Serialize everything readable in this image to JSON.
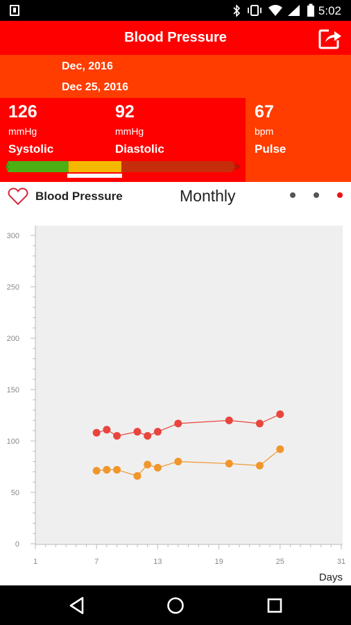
{
  "status_bar": {
    "time": "5:02",
    "icons": [
      "sim-icon",
      "bluetooth-icon",
      "vibrate-icon",
      "wifi-icon",
      "signal-icon",
      "battery-icon"
    ]
  },
  "app_bar": {
    "title": "Blood Pressure",
    "share_icon": "share-icon"
  },
  "dates": {
    "month": "Dec, 2016",
    "day": "Dec 25, 2016"
  },
  "readings": {
    "systolic": {
      "value": "126",
      "unit": "mmHg",
      "label": "Systolic"
    },
    "diastolic": {
      "value": "92",
      "unit": "mmHg",
      "label": "Diastolic"
    },
    "pulse": {
      "value": "67",
      "unit": "bpm",
      "label": "Pulse"
    }
  },
  "bp_scale": {
    "colors": [
      "#4caf13",
      "#f5b800",
      "#c62d0a"
    ],
    "segment_fractions": [
      0.26,
      0.24,
      0.5
    ],
    "indicator_segment": 1
  },
  "chart_header": {
    "label": "Blood Pressure",
    "period": "Monthly",
    "page_dots": 3,
    "active_dot": 2,
    "dot_colors": {
      "inactive": "#555555",
      "active": "#ee1111"
    }
  },
  "chart_data": {
    "type": "line",
    "xlabel": "Days",
    "ylabel": "",
    "xlim": [
      1,
      31
    ],
    "ylim": [
      0,
      300
    ],
    "x_ticks": [
      "1",
      "7",
      "13",
      "19",
      "25",
      "31"
    ],
    "y_ticks": [
      "0",
      "50",
      "100",
      "150",
      "200",
      "250",
      "300"
    ],
    "grid": false,
    "series": [
      {
        "color": "#e8453c",
        "x": [
          7,
          8,
          9,
          11,
          12,
          13,
          15,
          20,
          23,
          25
        ],
        "y": [
          108,
          111,
          105,
          109,
          105,
          109,
          117,
          120,
          117,
          126
        ]
      },
      {
        "color": "#f0962a",
        "x": [
          7,
          8,
          9,
          11,
          12,
          13,
          15,
          20,
          23,
          25
        ],
        "y": [
          71,
          72,
          72,
          66,
          77,
          74,
          80,
          78,
          76,
          92
        ]
      }
    ]
  },
  "nav_bar": {
    "back_icon": "back-icon",
    "home_icon": "home-icon",
    "recents_icon": "recents-icon"
  }
}
